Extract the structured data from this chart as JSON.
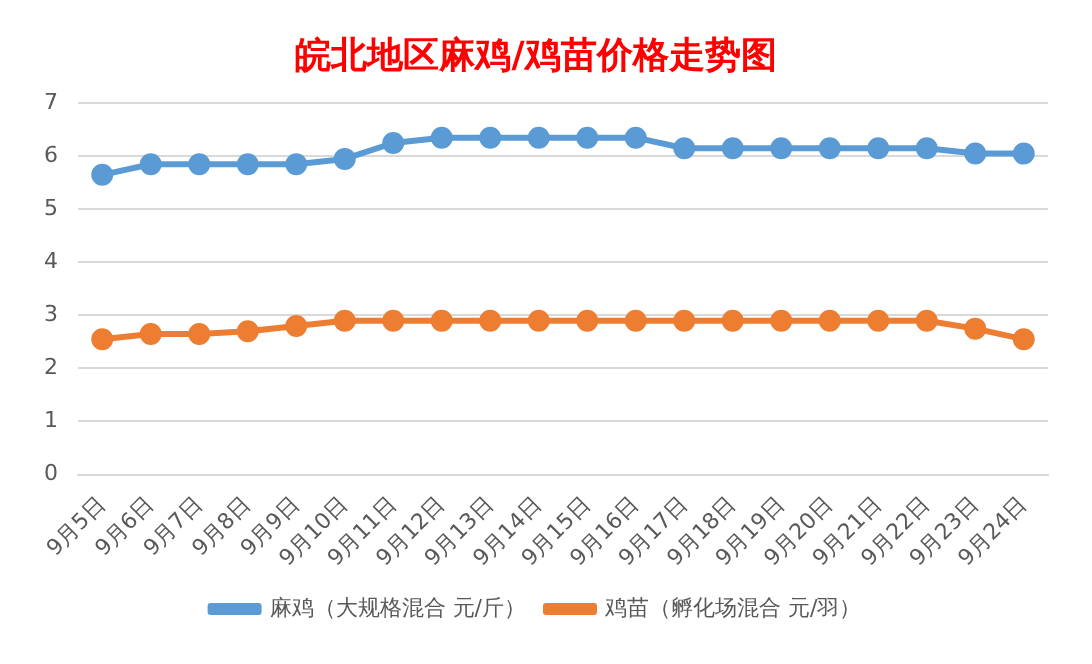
{
  "chart_data": {
    "type": "line",
    "title": "皖北地区麻鸡/鸡苗价格走势图",
    "categories": [
      "9月5日",
      "9月6日",
      "9月7日",
      "9月8日",
      "9月9日",
      "9月10日",
      "9月11日",
      "9月12日",
      "9月13日",
      "9月14日",
      "9月15日",
      "9月16日",
      "9月17日",
      "9月18日",
      "9月19日",
      "9月20日",
      "9月21日",
      "9月22日",
      "9月23日",
      "9月24日"
    ],
    "series": [
      {
        "name": "麻鸡（大规格混合 元/斤）",
        "color": "#5b9bd5",
        "values": [
          5.65,
          5.85,
          5.85,
          5.85,
          5.85,
          5.95,
          6.25,
          6.35,
          6.35,
          6.35,
          6.35,
          6.35,
          6.15,
          6.15,
          6.15,
          6.15,
          6.15,
          6.15,
          6.05,
          6.05
        ]
      },
      {
        "name": "鸡苗（孵化场混合 元/羽）",
        "color": "#ed7d31",
        "values": [
          2.55,
          2.65,
          2.65,
          2.7,
          2.8,
          2.9,
          2.9,
          2.9,
          2.9,
          2.9,
          2.9,
          2.9,
          2.9,
          2.9,
          2.9,
          2.9,
          2.9,
          2.9,
          2.75,
          2.55
        ]
      }
    ],
    "ylim": [
      0,
      7
    ],
    "yticks": [
      0,
      1,
      2,
      3,
      4,
      5,
      6,
      7
    ],
    "grid": "y",
    "legend": "bottom",
    "marker": "circle",
    "line_style": "solid"
  }
}
